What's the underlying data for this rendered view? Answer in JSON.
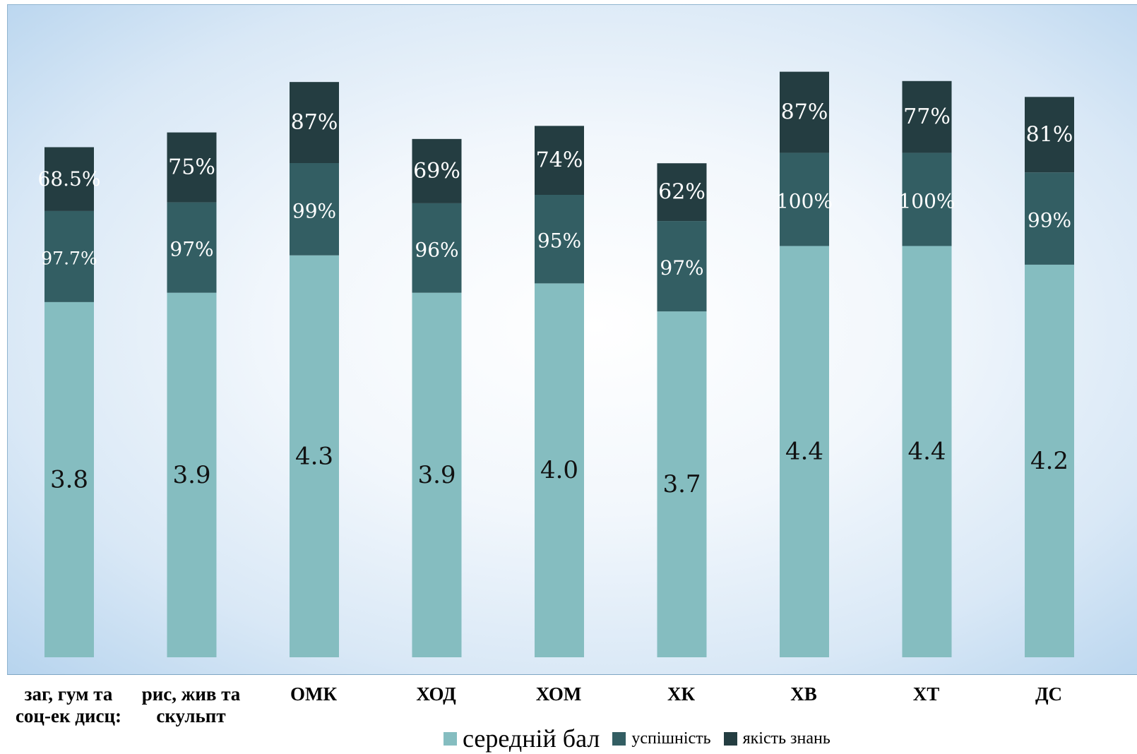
{
  "chart_data": {
    "type": "bar",
    "stacked": true,
    "categories": [
      "заг, гум та соц-ек дисц:",
      "рис, жив та скульпт",
      "ОМК",
      "ХОД",
      "ХОМ",
      "ХК",
      "ХВ",
      "ХТ",
      "ДС"
    ],
    "series": [
      {
        "name": "середній бал",
        "color": "#85bdc0",
        "values": [
          3.8,
          3.9,
          4.3,
          3.9,
          4.0,
          3.7,
          4.4,
          4.4,
          4.2
        ],
        "labels": [
          "3.8",
          "3.9",
          "4.3",
          "3.9",
          "4.0",
          "3.7",
          "4.4",
          "4.4",
          "4.2"
        ]
      },
      {
        "name": "успішність",
        "color": "#335e63",
        "values": [
          97.7,
          97,
          99,
          96,
          95,
          97,
          100,
          100,
          99
        ],
        "labels": [
          "97.7%",
          "97%",
          "99%",
          "96%",
          "95%",
          "97%",
          "100%",
          "100%",
          "99%"
        ]
      },
      {
        "name": "якість знань",
        "color": "#243d41",
        "values": [
          68.5,
          75,
          87,
          69,
          74,
          62,
          87,
          77,
          81
        ],
        "labels": [
          "68.5%",
          "75%",
          "87%",
          "69%",
          "74%",
          "62%",
          "87%",
          "77%",
          "81%"
        ]
      }
    ],
    "legend_position": "bottom",
    "grid": false
  }
}
